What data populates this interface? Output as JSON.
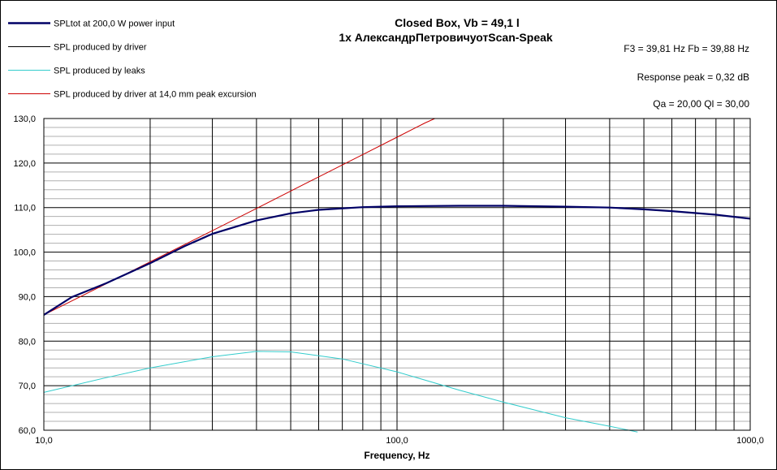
{
  "chart_data": {
    "type": "line",
    "title": "Closed Box, Vb = 49,1 l",
    "subtitle": "1x АлександрПетровичуотScan-Speak",
    "xlabel": "Frequency, Hz",
    "ylabel": "",
    "x_scale": "log",
    "xlim": [
      10,
      1000
    ],
    "ylim": [
      60,
      130
    ],
    "grid": true,
    "legend_position": "top-left",
    "x_tick_labels": [
      "10,0",
      "100,0",
      "1000,0"
    ],
    "x_tick_values": [
      10,
      100,
      1000
    ],
    "y_tick_labels": [
      "60,0",
      "70,0",
      "80,0",
      "90,0",
      "100,0",
      "110,0",
      "120,0",
      "130,0"
    ],
    "y_tick_values": [
      60,
      70,
      80,
      90,
      100,
      110,
      120,
      130
    ],
    "annotations": [
      "F3 = 39,81 Hz  Fb = 39,88 Hz",
      "Response peak = 0,32 dB",
      "Qa = 20,00  Ql = 30,00"
    ],
    "series": [
      {
        "name": "SPLtot at 200,0 W power input",
        "color": "#000066",
        "x": [
          10,
          12,
          15,
          20,
          25,
          30,
          40,
          50,
          60,
          80,
          100,
          150,
          200,
          300,
          400,
          500,
          600,
          800,
          1000
        ],
        "y": [
          85.9,
          89.9,
          93.0,
          97.5,
          101.3,
          104.1,
          107.1,
          108.7,
          109.5,
          110.1,
          110.3,
          110.4,
          110.4,
          110.2,
          110.0,
          109.6,
          109.2,
          108.4,
          107.5
        ]
      },
      {
        "name": "SPL produced by driver",
        "color": "#000000",
        "x": [
          10,
          12,
          15,
          20,
          25,
          30,
          40,
          50,
          60,
          80,
          100,
          150,
          200,
          300,
          400,
          500,
          600,
          800,
          1000
        ],
        "y": [
          85.9,
          89.9,
          93.0,
          97.5,
          101.3,
          104.1,
          107.1,
          108.7,
          109.5,
          110.1,
          110.3,
          110.4,
          110.4,
          110.2,
          110.0,
          109.6,
          109.2,
          108.4,
          107.5
        ]
      },
      {
        "name": "SPL produced by leaks",
        "color": "#33CCCC",
        "x": [
          10,
          15,
          20,
          30,
          40,
          50,
          70,
          100,
          150,
          200,
          300,
          400,
          480
        ],
        "y": [
          68.5,
          71.8,
          74.0,
          76.5,
          77.7,
          77.6,
          76.0,
          73.1,
          69.0,
          66.3,
          62.8,
          60.9,
          59.6
        ]
      },
      {
        "name": "SPL produced by driver at 14,0 mm peak excursion",
        "color": "#CC0000",
        "x": [
          10,
          20,
          30,
          40,
          60,
          80,
          100,
          120,
          128
        ],
        "y": [
          85.9,
          97.8,
          104.8,
          109.8,
          116.9,
          121.9,
          125.8,
          129.0,
          130.0
        ]
      }
    ]
  }
}
